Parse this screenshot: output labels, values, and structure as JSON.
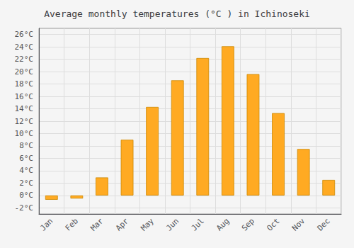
{
  "chart_data": {
    "type": "bar",
    "title": "Average monthly temperatures (°C ) in Ichinoseki",
    "categories": [
      "Jan",
      "Feb",
      "Mar",
      "Apr",
      "May",
      "Jun",
      "Jul",
      "Aug",
      "Sep",
      "Oct",
      "Nov",
      "Dec"
    ],
    "values": [
      -0.7,
      -0.5,
      2.9,
      9.0,
      14.3,
      18.6,
      22.2,
      24.1,
      19.6,
      13.3,
      7.5,
      2.5
    ],
    "color": "#FFAA22",
    "ylim": [
      -3,
      27
    ],
    "yticks": [
      {
        "value": -2,
        "label": "-2°C"
      },
      {
        "value": 0,
        "label": "0°C"
      },
      {
        "value": 2,
        "label": "2°C"
      },
      {
        "value": 4,
        "label": "4°C"
      },
      {
        "value": 6,
        "label": "6°C"
      },
      {
        "value": 8,
        "label": "8°C"
      },
      {
        "value": 10,
        "label": "10°C"
      },
      {
        "value": 12,
        "label": "12°C"
      },
      {
        "value": 14,
        "label": "14°C"
      },
      {
        "value": 16,
        "label": "16°C"
      },
      {
        "value": 18,
        "label": "18°C"
      },
      {
        "value": 20,
        "label": "20°C"
      },
      {
        "value": 22,
        "label": "22°C"
      },
      {
        "value": 24,
        "label": "24°C"
      },
      {
        "value": 26,
        "label": "26°C"
      }
    ],
    "grid": true
  }
}
